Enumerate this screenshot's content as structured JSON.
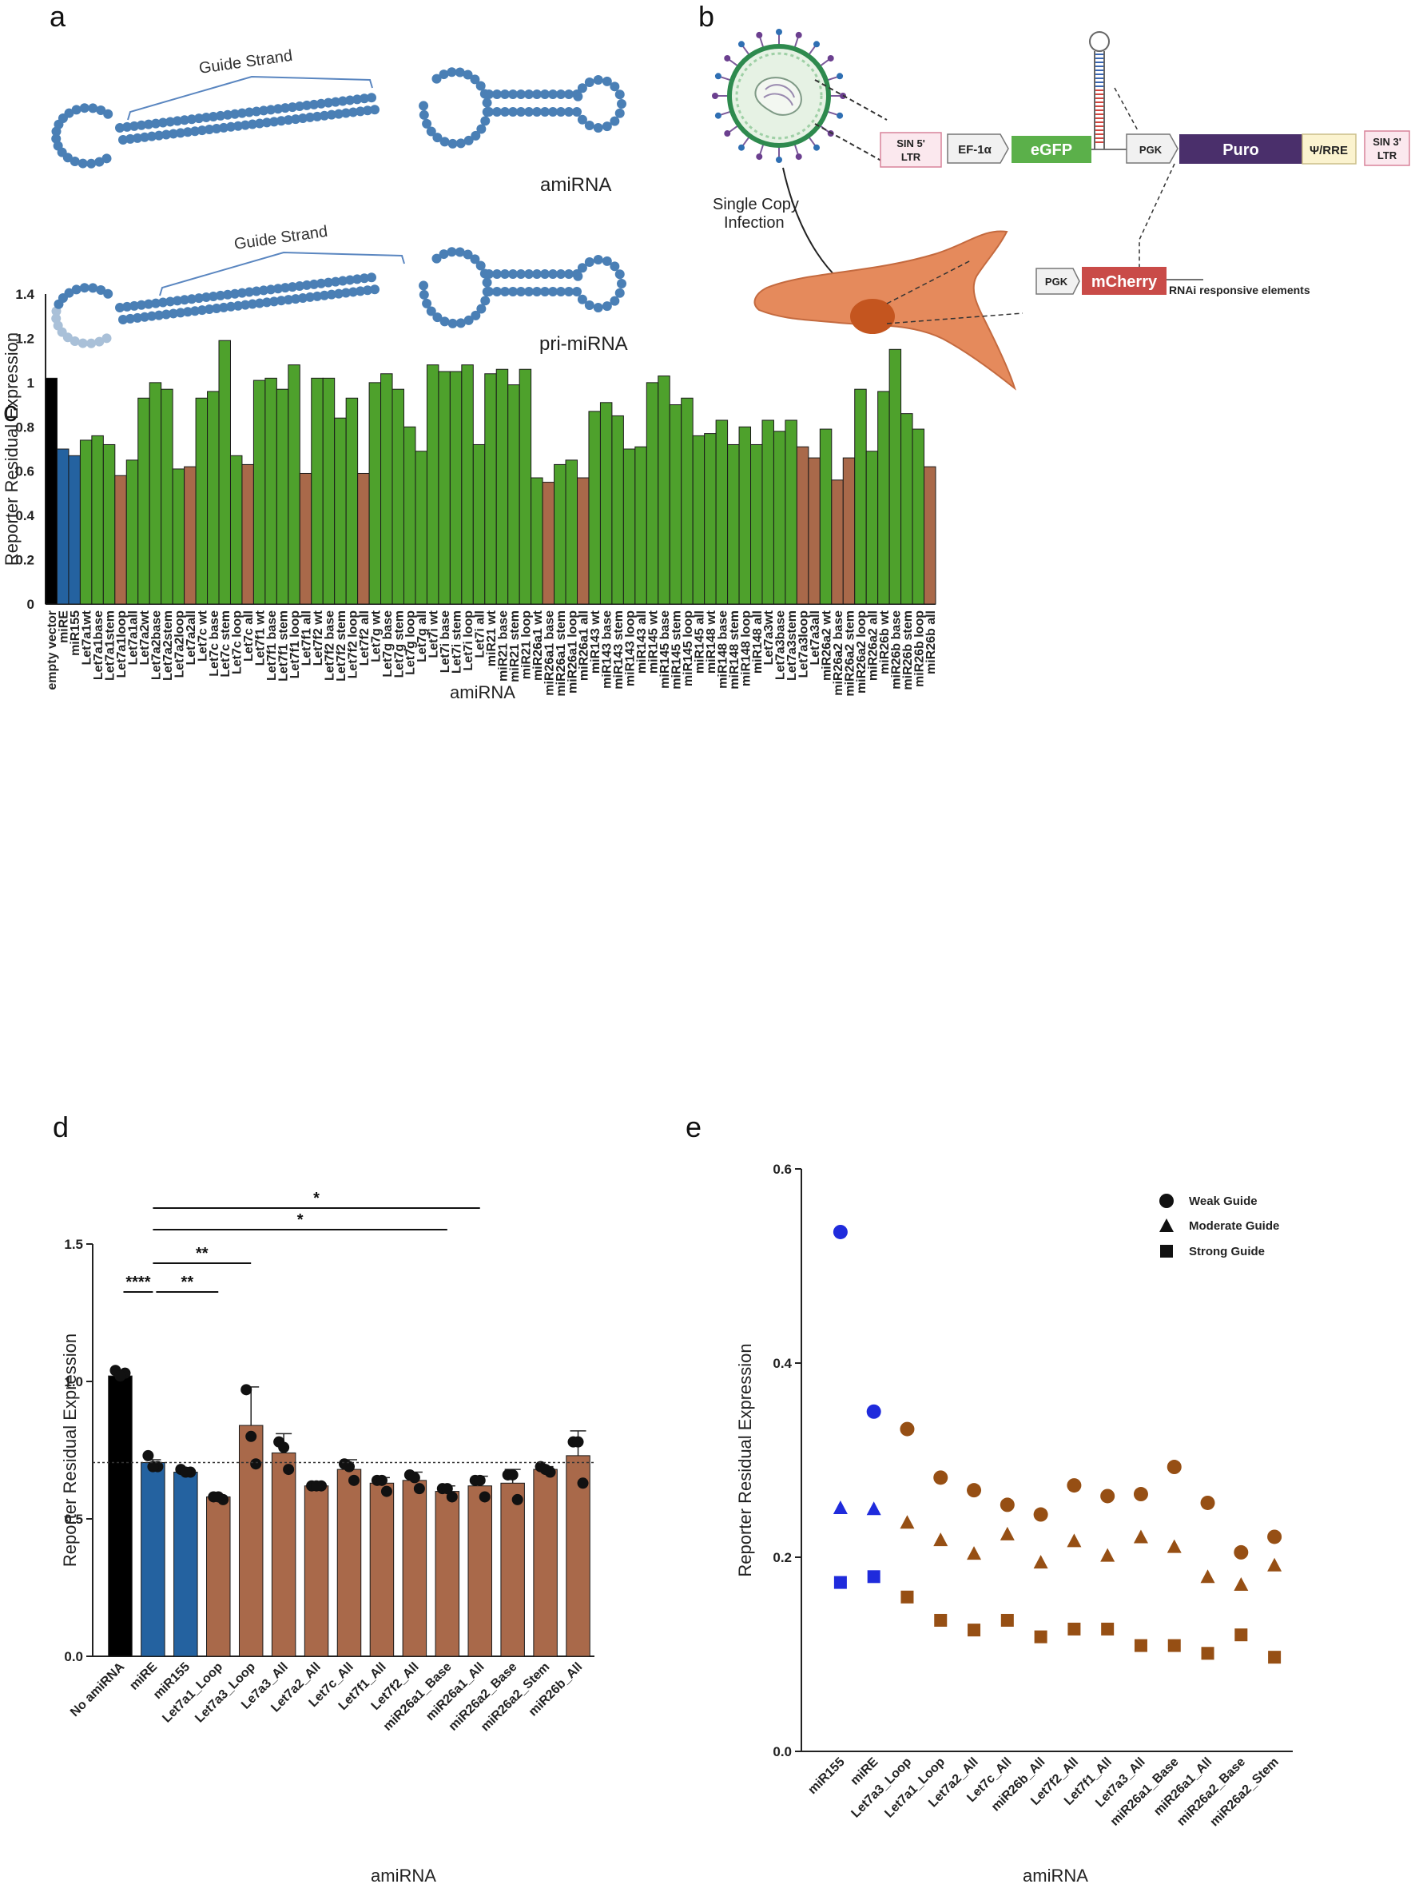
{
  "panel_letters": {
    "a": "a",
    "b": "b",
    "c": "c",
    "d": "d",
    "e": "e"
  },
  "panel_a": {
    "guide_strand_1": "Guide Strand",
    "guide_strand_2": "Guide Strand",
    "amirna_label": "amiRNA",
    "primirna_label": "pri-miRNA"
  },
  "panel_b": {
    "single_copy": "Single Copy\nInfection",
    "sin5": "SIN 5'\nLTR",
    "ef1a": "EF-1α",
    "egfp": "eGFP",
    "pgk1": "PGK",
    "puro": "Puro",
    "psi_rre": "Ψ/RRE",
    "sin3": "SIN 3'\nLTR",
    "pgk2": "PGK",
    "mcherry": "mCherry",
    "rnai": "RNAi responsive elements",
    "colors": {
      "egfp": "#5bb04a",
      "puro": "#4a2f6b",
      "mcherry": "#c94b48",
      "psi": "#fbf3cf",
      "ltr": "#fbe8ee",
      "cell": "#e58a5c",
      "nucleus": "#c4551f"
    }
  },
  "chart_data": [
    {
      "panel": "c",
      "type": "bar",
      "ylabel": "Reporter Residual Expression",
      "xlabel": "amiRNA",
      "ylim": [
        0,
        1.4
      ],
      "yticks": [
        "0",
        "0.2",
        "0.4",
        "0.6",
        "0.8",
        "1",
        "1.2",
        "1.4"
      ],
      "colors": {
        "control": "#000000",
        "reference": "#2462a0",
        "guide": "#4ea12c",
        "selected": "#a9694a"
      },
      "categories": [
        "empty vector",
        "miRE",
        "miR155",
        "Let7a1wt",
        "Let7a1base",
        "Let7a1stem",
        "Let7a1loop",
        "Let7a1all",
        "Let7a2wt",
        "Let7a2base",
        "Let7a2stem",
        "Let7a2loop",
        "Let7a2all",
        "Let7c wt",
        "Let7c base",
        "Let7c stem",
        "Let7c loop",
        "Let7c all",
        "Let7f1 wt",
        "Let7f1 base",
        "Let7f1 stem",
        "Let7f1 loop",
        "Let7f1 all",
        "Let7f2 wt",
        "Let7f2 base",
        "Let7f2 stem",
        "Let7f2 loop",
        "Let7f2 all",
        "Let7g wt",
        "Let7g base",
        "Let7g stem",
        "Let7g loop",
        "Let7g all",
        "Let7i wt",
        "Let7i base",
        "Let7i stem",
        "Let7i loop",
        "Let7i all",
        "miR21 wt",
        "miR21 base",
        "miR21 stem",
        "miR21 loop",
        "miR26a1 wt",
        "miR26a1 base",
        "miR26a1 stem",
        "miR26a1 loop",
        "miR26a1 all",
        "miR143 wt",
        "miR143 base",
        "miR143 stem",
        "miR143 loop",
        "miR143 all",
        "miR145 wt",
        "miR145 base",
        "miR145 stem",
        "miR145 loop",
        "miR145 all",
        "miR148 wt",
        "miR148 base",
        "miR148 stem",
        "miR148 loop",
        "miR148 all",
        "Let7a3wt",
        "Let7a3base",
        "Let7a3stem",
        "Let7a3loop",
        "Let7a3all",
        "miR26a2 wt",
        "miR26a2 base",
        "miR26a2 stem",
        "miR26a2 loop",
        "miR26a2 all",
        "miR26b wt",
        "miR26b base",
        "miR26b stem",
        "miR26b loop",
        "miR26b all"
      ],
      "values": [
        1.02,
        0.7,
        0.67,
        0.74,
        0.76,
        0.72,
        0.58,
        0.65,
        0.93,
        1.0,
        0.97,
        0.61,
        0.62,
        0.93,
        0.96,
        1.19,
        0.67,
        0.63,
        1.01,
        1.02,
        0.97,
        1.08,
        0.59,
        1.02,
        1.02,
        0.84,
        0.93,
        0.59,
        1.0,
        1.04,
        0.97,
        0.8,
        0.69,
        1.08,
        1.05,
        1.05,
        1.08,
        0.72,
        1.04,
        1.06,
        0.99,
        1.06,
        0.57,
        0.55,
        0.63,
        0.65,
        0.57,
        0.87,
        0.91,
        0.85,
        0.7,
        0.71,
        1.0,
        1.03,
        0.9,
        0.93,
        0.76,
        0.77,
        0.83,
        0.72,
        0.8,
        0.72,
        0.83,
        0.78,
        0.83,
        0.71,
        0.66,
        0.79,
        0.56,
        0.66,
        0.97,
        0.69,
        0.96,
        1.15,
        0.86,
        0.79,
        0.62
      ],
      "groups": [
        "control",
        "reference",
        "reference",
        "guide",
        "guide",
        "guide",
        "selected",
        "guide",
        "guide",
        "guide",
        "guide",
        "guide",
        "selected",
        "guide",
        "guide",
        "guide",
        "guide",
        "selected",
        "guide",
        "guide",
        "guide",
        "guide",
        "selected",
        "guide",
        "guide",
        "guide",
        "guide",
        "selected",
        "guide",
        "guide",
        "guide",
        "guide",
        "guide",
        "guide",
        "guide",
        "guide",
        "guide",
        "guide",
        "guide",
        "guide",
        "guide",
        "guide",
        "guide",
        "selected",
        "guide",
        "guide",
        "selected",
        "guide",
        "guide",
        "guide",
        "guide",
        "guide",
        "guide",
        "guide",
        "guide",
        "guide",
        "guide",
        "guide",
        "guide",
        "guide",
        "guide",
        "guide",
        "guide",
        "guide",
        "guide",
        "selected",
        "selected",
        "guide",
        "selected",
        "selected",
        "guide",
        "guide",
        "guide",
        "guide",
        "guide",
        "guide",
        "selected"
      ]
    },
    {
      "panel": "d",
      "type": "bar",
      "ylabel": "Reporter Residual Expression",
      "xlabel": "amiRNA",
      "ylim": [
        0,
        1.5
      ],
      "yticks": [
        "0.0",
        "0.5",
        "1.0",
        "1.5"
      ],
      "reference_line": 0.705,
      "categories": [
        "No amiRNA",
        "miRE",
        "miR155",
        "Let7a1_Loop",
        "Let7a3_Loop",
        "Le7a3_All",
        "Let7a2_All",
        "Let7c_All",
        "Let7f1_All",
        "Let7f2_All",
        "miR26a1_Base",
        "miR26a1_All",
        "miR26a2_Base",
        "miR26a2_Stem",
        "miR26b_All"
      ],
      "values": [
        1.02,
        0.705,
        0.67,
        0.58,
        0.84,
        0.74,
        0.62,
        0.68,
        0.63,
        0.64,
        0.6,
        0.62,
        0.63,
        0.68,
        0.73
      ],
      "errors": [
        0.015,
        0.01,
        0.005,
        0.005,
        0.14,
        0.07,
        0.005,
        0.035,
        0.02,
        0.03,
        0.02,
        0.035,
        0.05,
        0.01,
        0.09
      ],
      "points": [
        [
          1.04,
          1.03,
          1.02
        ],
        [
          0.73,
          0.69,
          0.69
        ],
        [
          0.68,
          0.67,
          0.67
        ],
        [
          0.58,
          0.57,
          0.58
        ],
        [
          0.97,
          0.7,
          0.8
        ],
        [
          0.78,
          0.68,
          0.76
        ],
        [
          0.62,
          0.62,
          0.62
        ],
        [
          0.7,
          0.64,
          0.69
        ],
        [
          0.64,
          0.6,
          0.64
        ],
        [
          0.66,
          0.61,
          0.65
        ],
        [
          0.61,
          0.58,
          0.61
        ],
        [
          0.64,
          0.58,
          0.64
        ],
        [
          0.66,
          0.57,
          0.66
        ],
        [
          0.69,
          0.67,
          0.68
        ],
        [
          0.78,
          0.63,
          0.78
        ]
      ],
      "colors": [
        "#000000",
        "#2462a0",
        "#2462a0",
        "#a9694a",
        "#a9694a",
        "#a9694a",
        "#a9694a",
        "#a9694a",
        "#a9694a",
        "#a9694a",
        "#a9694a",
        "#a9694a",
        "#a9694a",
        "#a9694a",
        "#a9694a"
      ],
      "significance": [
        {
          "from": 1,
          "to": 11,
          "label": "*"
        },
        {
          "from": 1,
          "to": 10,
          "label": "*"
        },
        {
          "from": 1,
          "to": 4,
          "label": "**"
        },
        {
          "from": 0,
          "to": 1,
          "label": "****"
        },
        {
          "from": 1,
          "to": 3,
          "label": "**"
        }
      ]
    },
    {
      "panel": "e",
      "type": "scatter",
      "ylabel": "Reporter Residual Expression",
      "xlabel": "amiRNA",
      "ylim": [
        0,
        0.6
      ],
      "yticks": [
        "0.0",
        "0.2",
        "0.4",
        "0.6"
      ],
      "categories": [
        "miR155",
        "miRE",
        "Let7a3_Loop",
        "Let7a1_Loop",
        "Let7a2_All",
        "Let7c_All",
        "miR26b_All",
        "Let7f2_All",
        "Let7f1_All",
        "Let7a3_All",
        "miR26a1_Base",
        "miR26a1_All",
        "miR26a2_Base",
        "miR26a2_Stem"
      ],
      "colors": [
        "#1f2bdc",
        "#1f2bdc",
        "#964f14",
        "#964f14",
        "#964f14",
        "#964f14",
        "#964f14",
        "#964f14",
        "#964f14",
        "#964f14",
        "#964f14",
        "#964f14",
        "#964f14",
        "#964f14"
      ],
      "series": [
        {
          "name": "Weak Guide",
          "marker": "circle",
          "values": [
            0.535,
            0.35,
            0.332,
            0.282,
            0.269,
            0.254,
            0.244,
            0.274,
            0.263,
            0.265,
            0.293,
            0.256,
            0.205,
            0.221
          ]
        },
        {
          "name": "Moderate Guide",
          "marker": "triangle",
          "values": [
            0.251,
            0.25,
            0.236,
            0.218,
            0.204,
            0.224,
            0.195,
            0.217,
            0.202,
            0.221,
            0.211,
            0.18,
            0.172,
            0.192
          ]
        },
        {
          "name": "Strong Guide",
          "marker": "square",
          "values": [
            0.174,
            0.18,
            0.159,
            0.135,
            0.125,
            0.135,
            0.118,
            0.126,
            0.126,
            0.109,
            0.109,
            0.101,
            0.12,
            0.097
          ]
        }
      ]
    }
  ]
}
